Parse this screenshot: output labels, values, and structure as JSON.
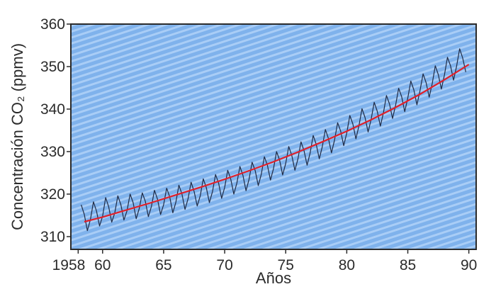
{
  "chart_data": {
    "type": "line",
    "title": "",
    "xlabel": "Años",
    "ylabel": "Concentración CO₂ (ppmv)",
    "xlim": [
      1957.4,
      1990.6
    ],
    "ylim": [
      307,
      360
    ],
    "x_ticks": [
      1958,
      1960,
      1965,
      1970,
      1975,
      1980,
      1985,
      1990
    ],
    "x_tick_labels": [
      "1958",
      "60",
      "65",
      "70",
      "75",
      "80",
      "85",
      "90"
    ],
    "y_ticks": [
      310,
      320,
      330,
      340,
      350,
      360
    ],
    "y_tick_labels": [
      "310",
      "320",
      "330",
      "340",
      "350",
      "360"
    ],
    "grid": false,
    "legend": "none",
    "colors": {
      "plot_background": "#7fb2ec",
      "stripe": "#a9cdf6",
      "frame": "#2b2b2b",
      "monthly": "#1f2a44",
      "trend": "#e0202a"
    },
    "series": [
      {
        "style": "thin dark line (monthly values, seasonal cycle)",
        "x": [
          1958.25,
          1958.5,
          1958.75,
          1959.0,
          1959.25,
          1959.5,
          1959.75,
          1960.0,
          1960.25,
          1960.5,
          1960.75,
          1961.0,
          1961.25,
          1961.5,
          1961.75,
          1962.0,
          1962.25,
          1962.5,
          1962.75,
          1963.0,
          1963.25,
          1963.5,
          1963.75,
          1964.0,
          1964.25,
          1964.5,
          1964.75,
          1965.0,
          1965.25,
          1965.5,
          1965.75,
          1966.0,
          1966.25,
          1966.5,
          1966.75,
          1967.0,
          1967.25,
          1967.5,
          1967.75,
          1968.0,
          1968.25,
          1968.5,
          1968.75,
          1969.0,
          1969.25,
          1969.5,
          1969.75,
          1970.0,
          1970.25,
          1970.5,
          1970.75,
          1971.0,
          1971.25,
          1971.5,
          1971.75,
          1972.0,
          1972.25,
          1972.5,
          1972.75,
          1973.0,
          1973.25,
          1973.5,
          1973.75,
          1974.0,
          1974.25,
          1974.5,
          1974.75,
          1975.0,
          1975.25,
          1975.5,
          1975.75,
          1976.0,
          1976.25,
          1976.5,
          1976.75,
          1977.0,
          1977.25,
          1977.5,
          1977.75,
          1978.0,
          1978.25,
          1978.5,
          1978.75,
          1979.0,
          1979.25,
          1979.5,
          1979.75,
          1980.0,
          1980.25,
          1980.5,
          1980.75,
          1981.0,
          1981.25,
          1981.5,
          1981.75,
          1982.0,
          1982.25,
          1982.5,
          1982.75,
          1983.0,
          1983.25,
          1983.5,
          1983.75,
          1984.0,
          1984.25,
          1984.5,
          1984.75,
          1985.0,
          1985.25,
          1985.5,
          1985.75,
          1986.0,
          1986.25,
          1986.5,
          1986.75,
          1987.0,
          1987.25,
          1987.5,
          1987.75,
          1988.0,
          1988.25,
          1988.5,
          1988.75,
          1989.0,
          1989.25,
          1989.5,
          1989.75
        ],
        "y": [
          317.5,
          315.2,
          311.4,
          314.0,
          318.2,
          316.0,
          312.5,
          314.8,
          319.2,
          317.0,
          313.4,
          315.6,
          319.6,
          317.5,
          313.9,
          316.1,
          320.0,
          318.0,
          314.2,
          316.6,
          320.3,
          318.3,
          314.7,
          317.1,
          320.9,
          318.8,
          315.2,
          317.5,
          321.4,
          319.3,
          315.6,
          318.1,
          322.1,
          320.0,
          316.4,
          318.9,
          322.8,
          320.6,
          317.2,
          319.6,
          323.6,
          321.5,
          318.0,
          320.6,
          324.6,
          322.6,
          319.0,
          321.6,
          325.6,
          323.5,
          320.0,
          322.6,
          326.5,
          324.4,
          320.8,
          323.5,
          327.5,
          325.5,
          322.0,
          324.7,
          328.8,
          326.8,
          323.3,
          326.0,
          330.0,
          328.0,
          324.5,
          327.2,
          331.2,
          329.1,
          325.6,
          328.3,
          332.3,
          330.2,
          326.8,
          329.7,
          333.8,
          331.7,
          328.3,
          331.2,
          335.2,
          333.1,
          329.7,
          332.7,
          336.8,
          334.8,
          331.4,
          334.4,
          338.5,
          336.5,
          333.0,
          336.1,
          340.1,
          338.0,
          334.6,
          337.6,
          341.6,
          339.5,
          336.0,
          339.1,
          343.2,
          341.2,
          337.8,
          340.9,
          344.9,
          342.9,
          339.4,
          342.6,
          346.6,
          344.5,
          341.0,
          344.3,
          348.3,
          346.2,
          342.8,
          346.0,
          350.2,
          348.1,
          344.7,
          348.0,
          352.2,
          350.2,
          346.8,
          350.1,
          354.2,
          352.0,
          348.7
        ]
      },
      {
        "style": "red trend line",
        "x": [
          1958.5,
          1960,
          1962,
          1964,
          1966,
          1968,
          1970,
          1972,
          1974,
          1976,
          1978,
          1980,
          1982,
          1984,
          1986,
          1988,
          1990
        ],
        "y": [
          313.5,
          314.6,
          316.3,
          318.0,
          319.8,
          321.6,
          323.5,
          325.5,
          327.6,
          329.9,
          332.3,
          334.8,
          337.5,
          340.4,
          343.5,
          346.9,
          350.5
        ]
      }
    ]
  }
}
